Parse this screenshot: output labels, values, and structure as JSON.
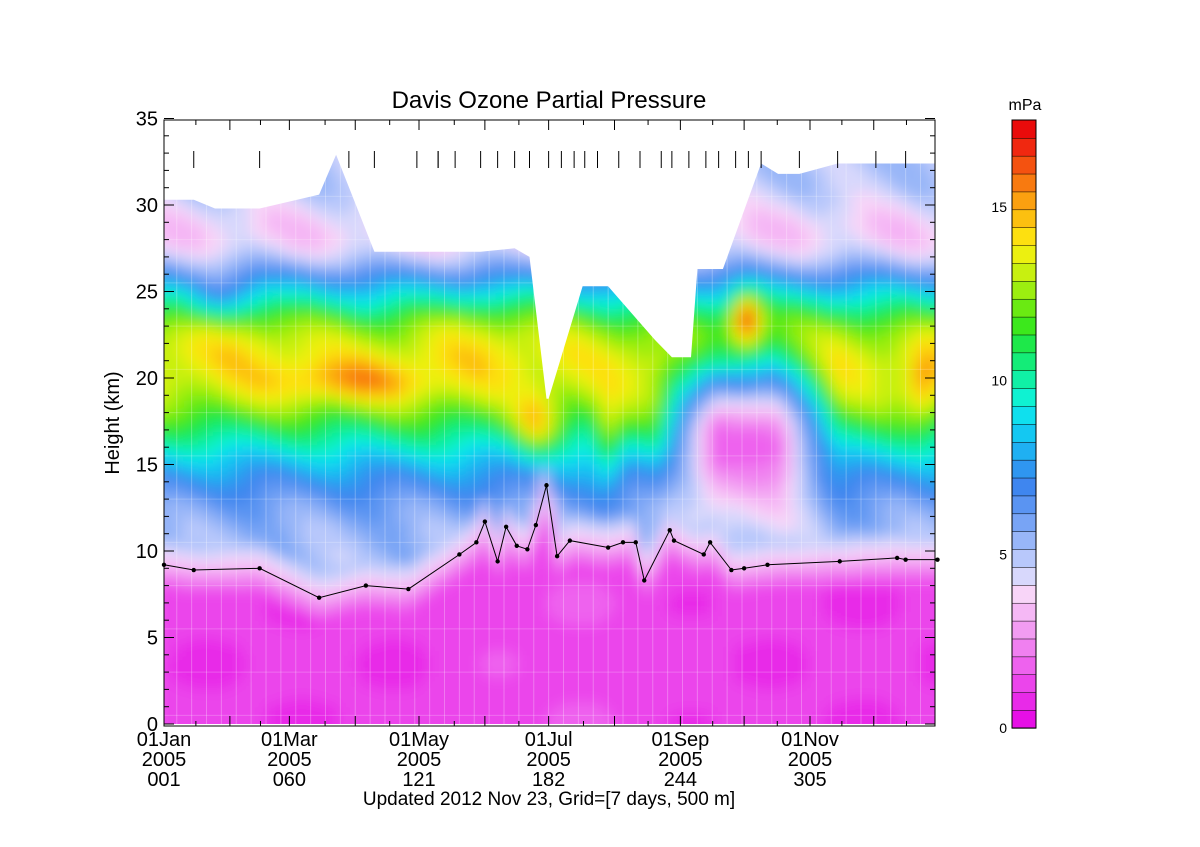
{
  "figure": {
    "title": "Davis Ozone Partial Pressure",
    "footer": "Updated 2012 Nov 23, Grid=[7 days, 500 m]"
  },
  "chart_data": {
    "type": "heatmap",
    "title": "Davis Ozone Partial Pressure",
    "ylabel": "Height (km)",
    "xlabel": "",
    "xlim_doy": [
      1,
      365
    ],
    "ylim": [
      0,
      35
    ],
    "y_ticks": [
      0,
      5,
      10,
      15,
      20,
      25,
      30,
      35
    ],
    "x_ticks": [
      {
        "doy": 1,
        "lines": [
          "01Jan",
          "2005",
          "001"
        ]
      },
      {
        "doy": 60,
        "lines": [
          "01Mar",
          "2005",
          "060"
        ]
      },
      {
        "doy": 121,
        "lines": [
          "01May",
          "2005",
          "121"
        ]
      },
      {
        "doy": 182,
        "lines": [
          "01Jul",
          "2005",
          "182"
        ]
      },
      {
        "doy": 244,
        "lines": [
          "01Sep",
          "2005",
          "244"
        ]
      },
      {
        "doy": 305,
        "lines": [
          "01Nov",
          "2005",
          "305"
        ]
      }
    ],
    "colorbar": {
      "label": "mPa",
      "min": 0,
      "max": 17.5,
      "ticks": [
        0,
        5,
        10,
        15
      ],
      "colors": [
        "#e60fe6",
        "#e82ae8",
        "#eb45eb",
        "#ee62ee",
        "#f080f0",
        "#f29cf2",
        "#f5b8f5",
        "#f8d5f8",
        "#d8d8fc",
        "#b8c8fb",
        "#98b6f8",
        "#78a4f5",
        "#5a94f2",
        "#3f86ef",
        "#2f96f0",
        "#1fb0f2",
        "#14c8f2",
        "#0fe0ee",
        "#0ff2d2",
        "#10f0a6",
        "#14ec78",
        "#1ee84a",
        "#3ce81c",
        "#6aea12",
        "#9cee10",
        "#c8f010",
        "#ecf010",
        "#fde010",
        "#fcc010",
        "#fba010",
        "#f87a10",
        "#f45210",
        "#f02810",
        "#ea0b0b"
      ]
    },
    "sonde_marker_days": [
      15,
      46,
      88,
      100,
      120,
      130,
      130,
      138,
      150,
      158,
      166,
      173,
      182,
      188,
      194,
      199,
      205,
      215,
      225,
      235,
      240,
      248,
      256,
      262,
      270,
      276,
      282,
      300,
      318,
      336,
      350
    ],
    "tropopause": {
      "x_doy": [
        1,
        15,
        46,
        74,
        96,
        116,
        140,
        148,
        152,
        158,
        162,
        167,
        172,
        176,
        181,
        186,
        192,
        210,
        217,
        223,
        227,
        239,
        241,
        255,
        258,
        268,
        274,
        285,
        319,
        346,
        350,
        365
      ],
      "y_km": [
        9.2,
        8.9,
        9.0,
        7.3,
        8.0,
        7.8,
        9.8,
        10.5,
        11.7,
        9.4,
        11.4,
        10.3,
        10.1,
        11.5,
        13.8,
        9.7,
        10.6,
        10.2,
        10.5,
        10.5,
        8.3,
        11.2,
        10.6,
        9.8,
        10.5,
        8.9,
        9.0,
        9.2,
        9.4,
        9.6,
        9.5,
        9.5
      ]
    },
    "top_of_data": {
      "x_doy": [
        1,
        15,
        25,
        46,
        74,
        82,
        100,
        130,
        150,
        166,
        173,
        181,
        182,
        198,
        205,
        210,
        232,
        240,
        249,
        252,
        262,
        264,
        282,
        290,
        300,
        318,
        336,
        365
      ],
      "y_km": [
        30.3,
        30.3,
        29.8,
        29.8,
        30.6,
        32.9,
        27.3,
        27.3,
        27.3,
        27.5,
        27.0,
        18.8,
        18.8,
        25.3,
        25.3,
        25.3,
        22.2,
        21.2,
        21.2,
        26.3,
        26.3,
        26.3,
        32.4,
        31.8,
        31.8,
        32.4,
        32.4,
        32.4
      ]
    },
    "features": [
      {
        "kind": "tropospheric_minimum",
        "value_mPa": 1.0
      },
      {
        "kind": "stratospheric_maximum_band",
        "height_km": 20.0,
        "value_mPa": 13.5
      },
      {
        "kind": "austral_spring_ozone_hole_minimum",
        "doy_range": [
          245,
          300
        ],
        "height_km": 16.0,
        "value_mPa": 1.5
      },
      {
        "kind": "late_winter_maximum",
        "doy": 275,
        "height_km": 23.5,
        "value_mPa": 16.8
      },
      {
        "kind": "winter_maximum",
        "doy": 178,
        "height_km": 17.2,
        "value_mPa": 15.2
      }
    ]
  }
}
